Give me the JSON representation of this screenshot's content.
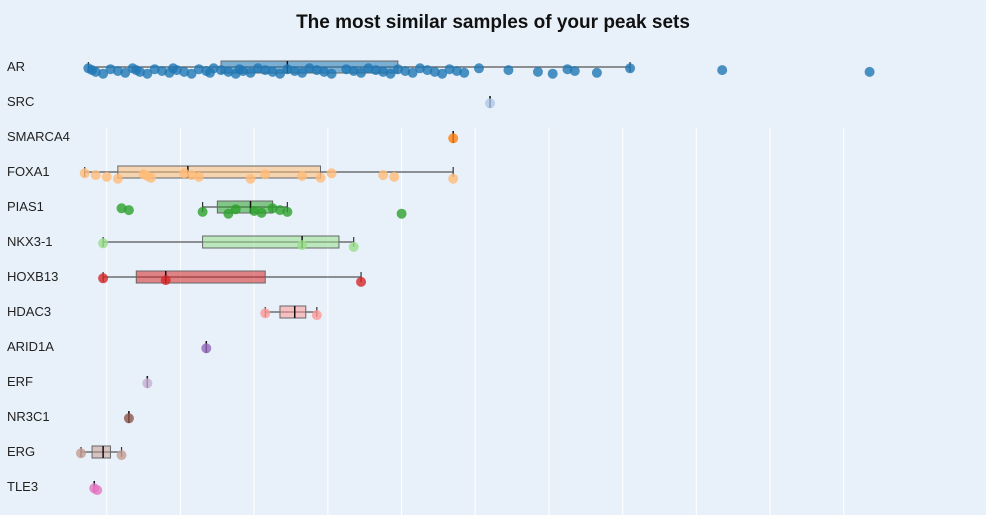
{
  "chart_data": {
    "type": "box",
    "title": "The most similar samples of your peak sets",
    "xlim": [
      0,
      1
    ],
    "grid": true,
    "series": [
      {
        "name": "AR",
        "color": "#1f77b4",
        "whisker": [
          0.01,
          0.745
        ],
        "box": [
          0.19,
          0.43
        ],
        "median": 0.28,
        "points": [
          0.01,
          0.015,
          0.02,
          0.03,
          0.04,
          0.05,
          0.06,
          0.07,
          0.075,
          0.08,
          0.09,
          0.1,
          0.11,
          0.12,
          0.125,
          0.13,
          0.14,
          0.15,
          0.16,
          0.17,
          0.175,
          0.18,
          0.19,
          0.2,
          0.21,
          0.215,
          0.22,
          0.23,
          0.24,
          0.25,
          0.26,
          0.27,
          0.28,
          0.29,
          0.3,
          0.31,
          0.32,
          0.33,
          0.34,
          0.36,
          0.37,
          0.38,
          0.39,
          0.4,
          0.41,
          0.42,
          0.43,
          0.44,
          0.45,
          0.46,
          0.47,
          0.48,
          0.49,
          0.5,
          0.51,
          0.52,
          0.54,
          0.58,
          0.62,
          0.64,
          0.66,
          0.67,
          0.7,
          0.745,
          0.87,
          1.07
        ]
      },
      {
        "name": "SRC",
        "color": "#aec7e8",
        "whisker": [
          0.555,
          0.555
        ],
        "box": [
          0.555,
          0.555
        ],
        "median": 0.555,
        "points": [
          0.555
        ]
      },
      {
        "name": "SMARCA4",
        "color": "#ff7f0e",
        "whisker": [
          0.505,
          0.505
        ],
        "box": [
          0.505,
          0.505
        ],
        "median": 0.505,
        "points": [
          0.505
        ]
      },
      {
        "name": "FOXA1",
        "color": "#ffbb78",
        "whisker": [
          0.005,
          0.505
        ],
        "box": [
          0.05,
          0.325
        ],
        "median": 0.145,
        "points": [
          0.005,
          0.02,
          0.035,
          0.05,
          0.085,
          0.09,
          0.095,
          0.14,
          0.15,
          0.16,
          0.23,
          0.25,
          0.3,
          0.325,
          0.34,
          0.41,
          0.425,
          0.505
        ]
      },
      {
        "name": "PIAS1",
        "color": "#2ca02c",
        "whisker": [
          0.165,
          0.28
        ],
        "box": [
          0.185,
          0.26
        ],
        "median": 0.23,
        "points": [
          0.055,
          0.065,
          0.165,
          0.2,
          0.21,
          0.235,
          0.245,
          0.26,
          0.27,
          0.28,
          0.435
        ]
      },
      {
        "name": "NKX3-1",
        "color": "#98df8a",
        "whisker": [
          0.03,
          0.37
        ],
        "box": [
          0.165,
          0.35
        ],
        "median": 0.3,
        "points": [
          0.03,
          0.3,
          0.37
        ]
      },
      {
        "name": "HOXB13",
        "color": "#d62728",
        "whisker": [
          0.03,
          0.38
        ],
        "box": [
          0.075,
          0.25
        ],
        "median": 0.115,
        "points": [
          0.03,
          0.115,
          0.38
        ]
      },
      {
        "name": "HDAC3",
        "color": "#ff9896",
        "whisker": [
          0.25,
          0.32
        ],
        "box": [
          0.27,
          0.305
        ],
        "median": 0.29,
        "points": [
          0.25,
          0.32
        ]
      },
      {
        "name": "ARID1A",
        "color": "#9467bd",
        "whisker": [
          0.17,
          0.17
        ],
        "box": [
          0.17,
          0.17
        ],
        "median": 0.17,
        "points": [
          0.17
        ]
      },
      {
        "name": "ERF",
        "color": "#c5b0d5",
        "whisker": [
          0.09,
          0.09
        ],
        "box": [
          0.09,
          0.09
        ],
        "median": 0.09,
        "points": [
          0.09
        ]
      },
      {
        "name": "NR3C1",
        "color": "#8c564b",
        "whisker": [
          0.065,
          0.065
        ],
        "box": [
          0.065,
          0.065
        ],
        "median": 0.065,
        "points": [
          0.065
        ]
      },
      {
        "name": "ERG",
        "color": "#c49c94",
        "whisker": [
          0.0,
          0.055
        ],
        "box": [
          0.015,
          0.04
        ],
        "median": 0.03,
        "points": [
          0.0,
          0.055
        ]
      },
      {
        "name": "TLE3",
        "color": "#e377c2",
        "whisker": [
          0.018,
          0.018
        ],
        "box": [
          0.018,
          0.018
        ],
        "median": 0.018,
        "points": [
          0.018,
          0.022
        ]
      }
    ]
  }
}
